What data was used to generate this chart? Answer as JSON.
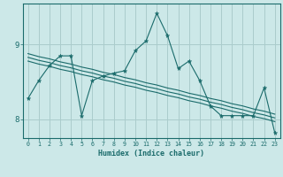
{
  "title": "",
  "xlabel": "Humidex (Indice chaleur)",
  "background_color": "#cce8e8",
  "grid_color": "#aacccc",
  "line_color": "#1a6b6b",
  "x_data": [
    0,
    1,
    2,
    3,
    4,
    5,
    6,
    7,
    8,
    9,
    10,
    11,
    12,
    13,
    14,
    15,
    16,
    17,
    18,
    19,
    20,
    21,
    22,
    23
  ],
  "y_main": [
    8.28,
    8.52,
    8.72,
    8.85,
    8.85,
    8.05,
    8.52,
    8.58,
    8.62,
    8.65,
    8.92,
    9.05,
    9.42,
    9.12,
    8.68,
    8.78,
    8.52,
    8.18,
    8.05,
    8.05,
    8.05,
    8.05,
    8.42,
    7.82
  ],
  "y_trend1": [
    8.88,
    8.84,
    8.81,
    8.77,
    8.74,
    8.7,
    8.67,
    8.63,
    8.6,
    8.56,
    8.53,
    8.49,
    8.46,
    8.42,
    8.39,
    8.35,
    8.32,
    8.28,
    8.25,
    8.21,
    8.18,
    8.14,
    8.11,
    8.07
  ],
  "y_trend2": [
    8.83,
    8.79,
    8.76,
    8.72,
    8.69,
    8.65,
    8.62,
    8.58,
    8.55,
    8.51,
    8.48,
    8.44,
    8.41,
    8.37,
    8.34,
    8.3,
    8.27,
    8.23,
    8.2,
    8.16,
    8.13,
    8.09,
    8.06,
    8.02
  ],
  "y_trend3": [
    8.78,
    8.74,
    8.71,
    8.67,
    8.64,
    8.6,
    8.57,
    8.53,
    8.5,
    8.46,
    8.43,
    8.39,
    8.36,
    8.32,
    8.29,
    8.25,
    8.22,
    8.18,
    8.15,
    8.11,
    8.08,
    8.04,
    8.01,
    7.97
  ],
  "ylim": [
    7.75,
    9.55
  ],
  "yticks": [
    8,
    9
  ],
  "xlim": [
    -0.5,
    23.5
  ],
  "xticks": [
    0,
    1,
    2,
    3,
    4,
    5,
    6,
    7,
    8,
    9,
    10,
    11,
    12,
    13,
    14,
    15,
    16,
    17,
    18,
    19,
    20,
    21,
    22,
    23
  ]
}
